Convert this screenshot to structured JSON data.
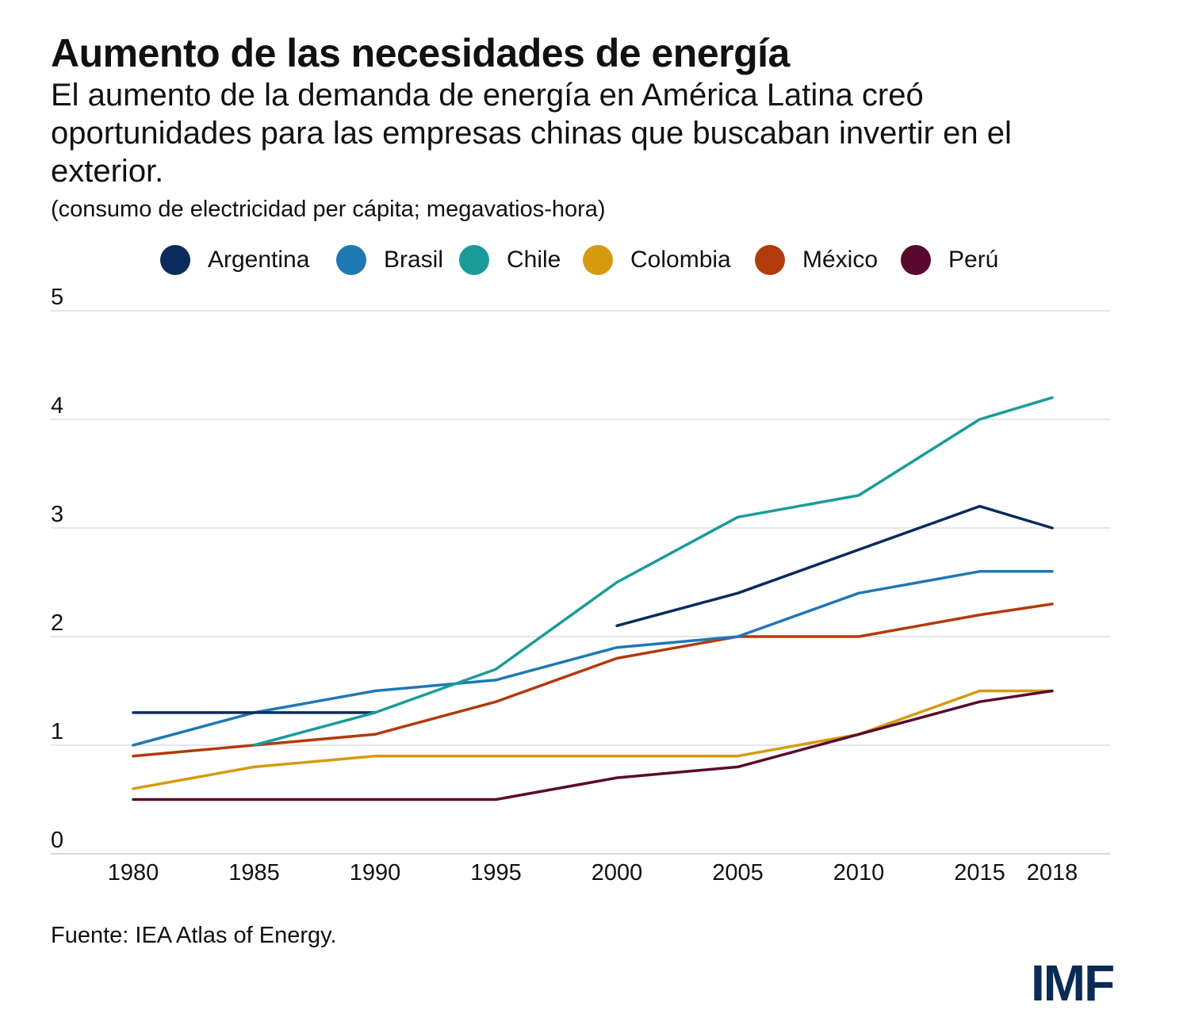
{
  "header": {
    "title": "Aumento de las necesidades de energía",
    "subtitle": "El aumento de la demanda de energía en América Latina creó oportunidades para las empresas chinas que buscaban invertir en el exterior.",
    "unit_note": "(consumo de electricidad per cápita; megavatios-hora)"
  },
  "footer": {
    "source": "Fuente: IEA Atlas of Energy.",
    "logo_text": "IMF"
  },
  "chart_data": {
    "type": "line",
    "title": "Aumento de las necesidades de energía",
    "xlabel": "",
    "ylabel": "",
    "x": [
      "1980",
      "1985",
      "1990",
      "1995",
      "2000",
      "2005",
      "2010",
      "2015",
      "2018"
    ],
    "y_ticks": [
      "0",
      "1",
      "2",
      "3",
      "4",
      "5"
    ],
    "ylim": [
      0,
      5
    ],
    "grid": true,
    "legend_position": "top",
    "series": [
      {
        "name": "Argentina",
        "color": "#0b2b5c",
        "values": [
          1.3,
          1.3,
          1.3,
          null,
          2.1,
          2.4,
          2.8,
          3.2,
          3.0
        ]
      },
      {
        "name": "Brasil",
        "color": "#1f78b4",
        "values": [
          1.0,
          1.3,
          1.5,
          1.6,
          1.9,
          2.0,
          2.4,
          2.6,
          2.6
        ]
      },
      {
        "name": "Chile",
        "color": "#1b9a9a",
        "values": [
          null,
          1.0,
          1.3,
          1.7,
          2.5,
          3.1,
          3.3,
          4.0,
          4.2
        ]
      },
      {
        "name": "Colombia",
        "color": "#d59a10",
        "values": [
          0.6,
          0.8,
          0.9,
          0.9,
          0.9,
          0.9,
          1.1,
          1.5,
          1.5
        ]
      },
      {
        "name": "México",
        "color": "#b23b0c",
        "values": [
          0.9,
          1.0,
          1.1,
          1.4,
          1.8,
          2.0,
          2.0,
          2.2,
          2.3
        ]
      },
      {
        "name": "Perú",
        "color": "#5a0a2e",
        "values": [
          0.5,
          0.5,
          0.5,
          0.5,
          0.7,
          0.8,
          1.1,
          1.4,
          1.5
        ]
      }
    ]
  }
}
